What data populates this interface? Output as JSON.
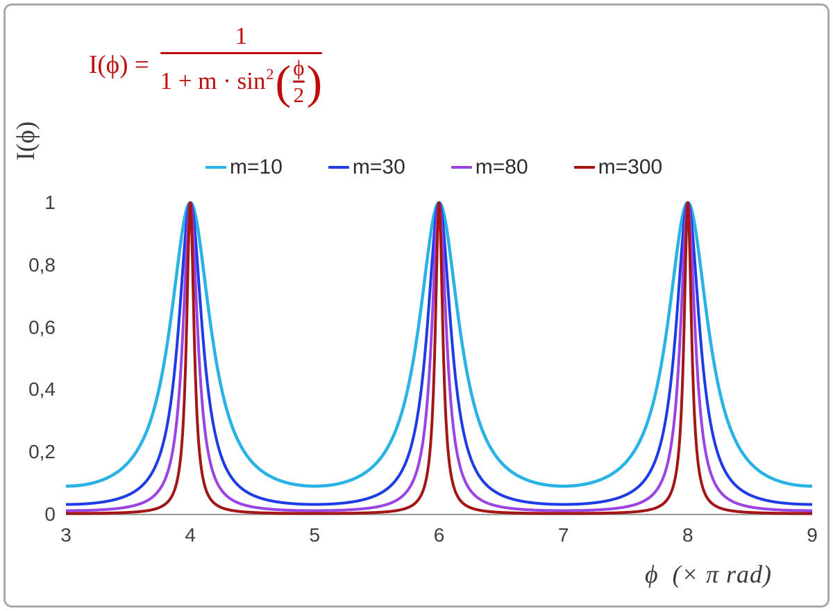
{
  "colors": {
    "formula": "#bf0b0b",
    "axis": "#9a9a9a",
    "tick_text": "#3f3f3f",
    "legend_text": "#2d2d2d",
    "border": "#a9a9a9"
  },
  "formula": {
    "full_text": "I(ϕ) = 1 / (1 + m·sin²(ϕ/2))",
    "lhs": "I(ϕ) =",
    "numerator": "1",
    "denominator_prefix": "1 + m · sin",
    "exponent": "2",
    "open_paren": "(",
    "inner_numerator": "ϕ",
    "inner_denominator": "2",
    "close_paren": ")"
  },
  "chart_data": {
    "type": "line",
    "title": "",
    "formula_text": "I(ϕ) = 1 / (1 + m·sin²(ϕ/2))",
    "function": "I(x) = 1 / (1 + m·sin²(π·x/2)), x = ϕ in units of π rad",
    "xlabel": "ϕ  (× π rad)",
    "ylabel": "I(ϕ)",
    "x_unit": "π rad",
    "xlim": [
      3,
      9
    ],
    "ylim": [
      0,
      1
    ],
    "x_ticks": [
      3,
      4,
      5,
      6,
      7,
      8,
      9
    ],
    "x_tick_labels": [
      "3",
      "4",
      "5",
      "6",
      "7",
      "8",
      "9"
    ],
    "y_ticks": [
      0,
      0.2,
      0.4,
      0.6,
      0.8,
      1
    ],
    "y_tick_labels": [
      "0",
      "0,2",
      "0,4",
      "0,6",
      "0,8",
      "1"
    ],
    "grid": false,
    "legend_position": "top-center",
    "peaks_at_x": [
      4,
      6,
      8
    ],
    "peak_value": 1,
    "series": [
      {
        "name": "m=10",
        "m": 10,
        "color": "#29b2e5",
        "stroke_width": 4.5
      },
      {
        "name": "m=30",
        "m": 30,
        "color": "#1e3ce6",
        "stroke_width": 4
      },
      {
        "name": "m=80",
        "m": 80,
        "color": "#9b43e3",
        "stroke_width": 4
      },
      {
        "name": "m=300",
        "m": 300,
        "color": "#a31616",
        "stroke_width": 4
      }
    ]
  }
}
